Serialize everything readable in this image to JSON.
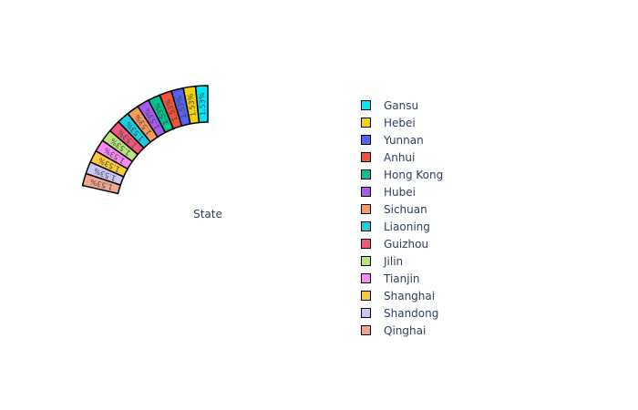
{
  "chart_data": {
    "type": "pie",
    "hole": true,
    "center_label": "State",
    "legend": {
      "position": "right"
    },
    "slices": [
      {
        "label": "Gansu",
        "value": 1.53,
        "color": "#00e7f7"
      },
      {
        "label": "Hebei",
        "value": 1.53,
        "color": "#f7d10a"
      },
      {
        "label": "Yunnan",
        "value": 1.53,
        "color": "#5563f4"
      },
      {
        "label": "Anhui",
        "value": 1.53,
        "color": "#ee543a"
      },
      {
        "label": "Hong Kong",
        "value": 1.53,
        "color": "#00c38f"
      },
      {
        "label": "Hubei",
        "value": 1.53,
        "color": "#a65cf3"
      },
      {
        "label": "Sichuan",
        "value": 1.53,
        "color": "#f79a5d"
      },
      {
        "label": "Liaoning",
        "value": 1.53,
        "color": "#1bcde3"
      },
      {
        "label": "Guizhou",
        "value": 1.53,
        "color": "#f0587c"
      },
      {
        "label": "Jilin",
        "value": 1.53,
        "color": "#b6e57d"
      },
      {
        "label": "Tianjin",
        "value": 1.53,
        "color": "#fb89f6"
      },
      {
        "label": "Shanghai",
        "value": 1.53,
        "color": "#fbc840"
      },
      {
        "label": "Shandong",
        "value": 1.53,
        "color": "#c9c7f7"
      },
      {
        "label": "Qinghai",
        "value": 1.53,
        "color": "#f0a790"
      }
    ]
  }
}
